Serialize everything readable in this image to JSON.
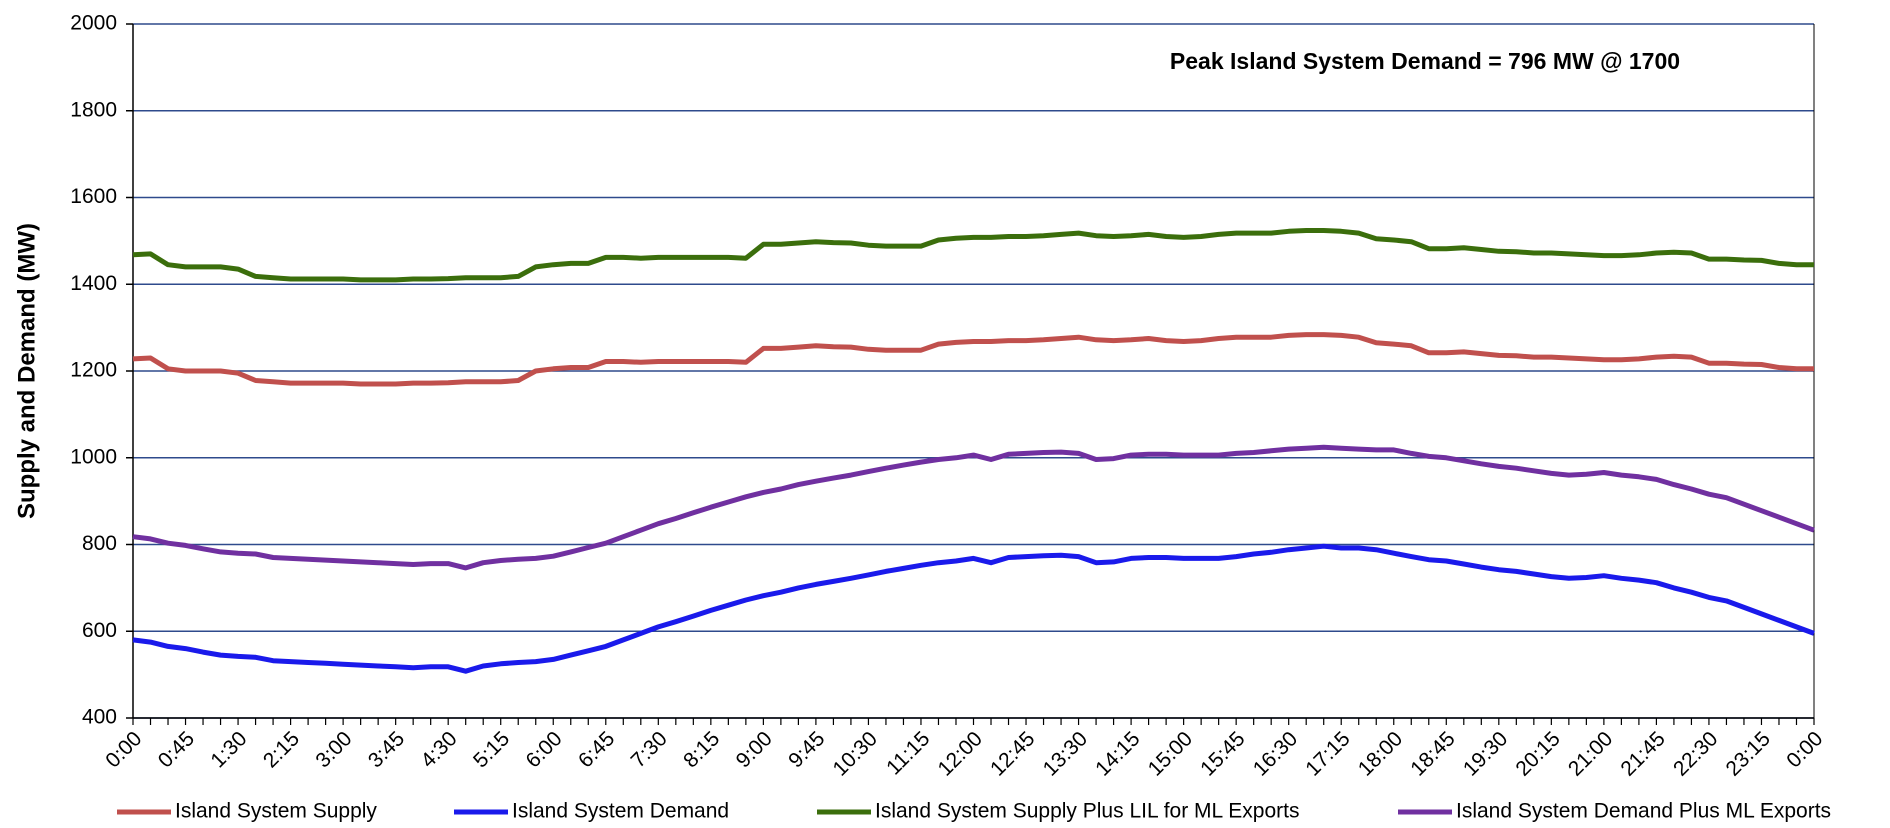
{
  "chart_data": {
    "type": "line",
    "annotation": "Peak Island System Demand = 796 MW @ 1700",
    "y_label": "Supply and Demand (MW)",
    "categories": [
      "0:00",
      null,
      null,
      "0:45",
      null,
      null,
      "1:30",
      null,
      null,
      "2:15",
      null,
      null,
      "3:00",
      null,
      null,
      "3:45",
      null,
      null,
      "4:30",
      null,
      null,
      "5:15",
      null,
      null,
      "6:00",
      null,
      null,
      "6:45",
      null,
      null,
      "7:30",
      null,
      null,
      "8:15",
      null,
      null,
      "9:00",
      null,
      null,
      "9:45",
      null,
      null,
      "10:30",
      null,
      null,
      "11:15",
      null,
      null,
      "12:00",
      null,
      null,
      "12:45",
      null,
      null,
      "13:30",
      null,
      null,
      "14:15",
      null,
      null,
      "15:00",
      null,
      null,
      "15:45",
      null,
      null,
      "16:30",
      null,
      null,
      "17:15",
      null,
      null,
      "18:00",
      null,
      null,
      "18:45",
      null,
      null,
      "19:30",
      null,
      null,
      "20:15",
      null,
      null,
      "21:00",
      null,
      null,
      "21:45",
      null,
      null,
      "22:30",
      null,
      null,
      "23:15",
      null,
      null,
      "0:00"
    ],
    "series": [
      {
        "name": "Island System Supply",
        "color": "#c0504d",
        "values": [
          1228,
          1230,
          1205,
          1200,
          1200,
          1200,
          1195,
          1178,
          1175,
          1172,
          1172,
          1172,
          1172,
          1170,
          1170,
          1170,
          1172,
          1172,
          1173,
          1175,
          1175,
          1175,
          1178,
          1200,
          1205,
          1208,
          1208,
          1222,
          1222,
          1220,
          1222,
          1222,
          1222,
          1222,
          1222,
          1220,
          1252,
          1252,
          1255,
          1258,
          1256,
          1255,
          1250,
          1248,
          1248,
          1248,
          1262,
          1266,
          1268,
          1268,
          1270,
          1270,
          1272,
          1275,
          1278,
          1272,
          1270,
          1272,
          1275,
          1270,
          1268,
          1270,
          1275,
          1278,
          1278,
          1278,
          1282,
          1284,
          1284,
          1282,
          1278,
          1265,
          1262,
          1258,
          1242,
          1242,
          1244,
          1240,
          1236,
          1235,
          1232,
          1232,
          1230,
          1228,
          1226,
          1226,
          1228,
          1232,
          1234,
          1232,
          1218,
          1218,
          1216,
          1215,
          1208,
          1205,
          1205
        ]
      },
      {
        "name": "Island System Demand",
        "color": "#1a1aeb",
        "values": [
          580,
          575,
          565,
          560,
          552,
          545,
          542,
          540,
          532,
          530,
          528,
          526,
          524,
          522,
          520,
          518,
          516,
          518,
          518,
          508,
          520,
          525,
          528,
          530,
          535,
          545,
          555,
          565,
          580,
          595,
          610,
          622,
          635,
          648,
          660,
          672,
          682,
          690,
          700,
          708,
          715,
          722,
          730,
          738,
          745,
          752,
          758,
          762,
          768,
          758,
          770,
          772,
          774,
          775,
          772,
          758,
          760,
          768,
          770,
          770,
          768,
          768,
          768,
          772,
          778,
          782,
          788,
          792,
          796,
          792,
          792,
          788,
          780,
          772,
          765,
          762,
          755,
          748,
          742,
          738,
          732,
          726,
          722,
          724,
          728,
          722,
          718,
          712,
          700,
          690,
          678,
          670,
          655,
          640,
          625,
          610,
          595
        ]
      },
      {
        "name": "Island System Supply Plus LIL for ML Exports",
        "color": "#3b6e0c",
        "values": [
          1468,
          1470,
          1445,
          1440,
          1440,
          1440,
          1435,
          1418,
          1415,
          1412,
          1412,
          1412,
          1412,
          1410,
          1410,
          1410,
          1412,
          1412,
          1413,
          1415,
          1415,
          1415,
          1418,
          1440,
          1445,
          1448,
          1448,
          1462,
          1462,
          1460,
          1462,
          1462,
          1462,
          1462,
          1462,
          1460,
          1492,
          1492,
          1495,
          1498,
          1496,
          1495,
          1490,
          1488,
          1488,
          1488,
          1502,
          1506,
          1508,
          1508,
          1510,
          1510,
          1512,
          1515,
          1518,
          1512,
          1510,
          1512,
          1515,
          1510,
          1508,
          1510,
          1515,
          1518,
          1518,
          1518,
          1522,
          1524,
          1524,
          1522,
          1518,
          1505,
          1502,
          1498,
          1482,
          1482,
          1484,
          1480,
          1476,
          1475,
          1472,
          1472,
          1470,
          1468,
          1466,
          1466,
          1468,
          1472,
          1474,
          1472,
          1458,
          1458,
          1456,
          1455,
          1448,
          1445,
          1445
        ]
      },
      {
        "name": "Island System Demand Plus ML Exports",
        "color": "#7030a0",
        "values": [
          818,
          813,
          803,
          798,
          790,
          783,
          780,
          778,
          770,
          768,
          766,
          764,
          762,
          760,
          758,
          756,
          754,
          756,
          756,
          746,
          758,
          763,
          766,
          768,
          773,
          783,
          793,
          803,
          818,
          833,
          848,
          860,
          873,
          886,
          898,
          910,
          920,
          928,
          938,
          946,
          953,
          960,
          968,
          976,
          983,
          990,
          996,
          1000,
          1006,
          996,
          1008,
          1010,
          1012,
          1013,
          1010,
          996,
          998,
          1006,
          1008,
          1008,
          1006,
          1006,
          1006,
          1010,
          1012,
          1016,
          1020,
          1022,
          1024,
          1022,
          1020,
          1018,
          1018,
          1010,
          1003,
          1000,
          993,
          986,
          980,
          976,
          970,
          964,
          960,
          962,
          966,
          960,
          956,
          950,
          938,
          928,
          916,
          908,
          893,
          878,
          863,
          848,
          833
        ]
      }
    ],
    "ylim": [
      400,
      2000
    ],
    "yticks": [
      400,
      600,
      800,
      1000,
      1200,
      1400,
      1600,
      1800,
      2000
    ],
    "grid": true,
    "grid_color": "#2e4a8c",
    "legend": "bottom"
  }
}
